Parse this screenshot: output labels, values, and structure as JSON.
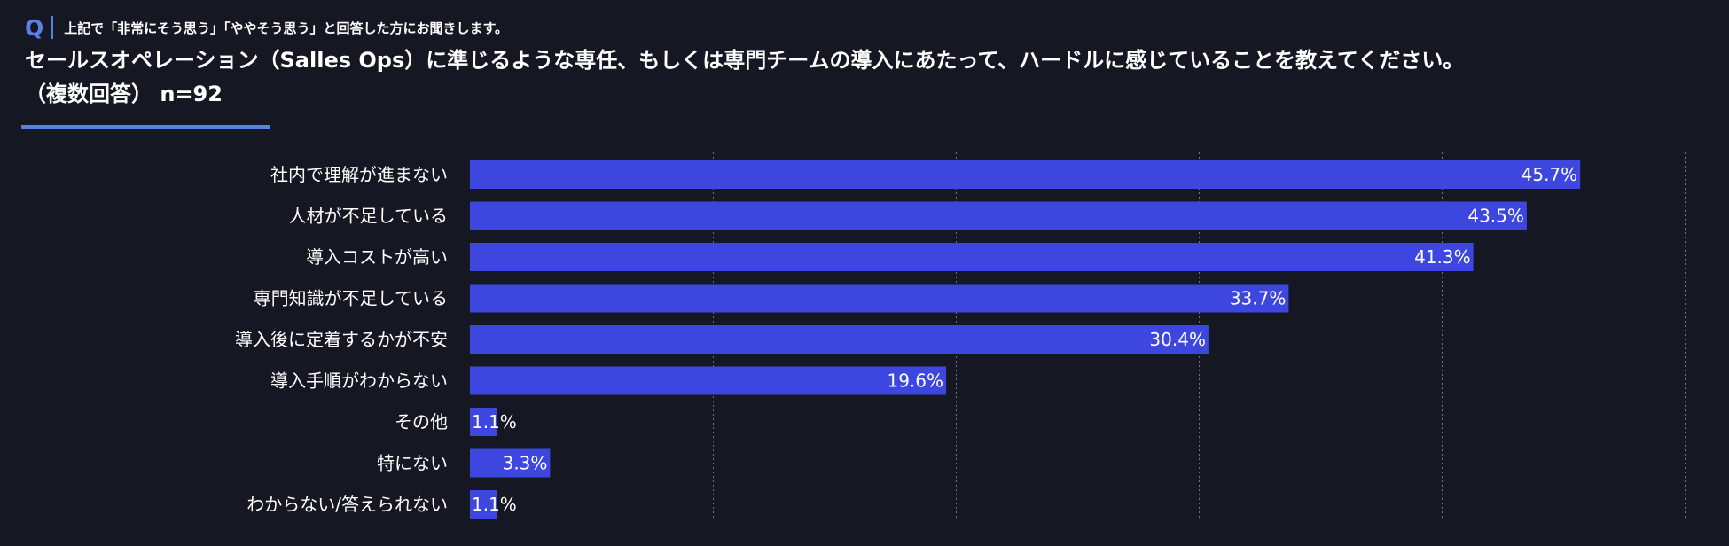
{
  "header": {
    "q_mark": "Q",
    "prequestion": "上記で「非常にそう思う」「ややそう思う」と回答した方にお聞きします。",
    "question": "セールスオペレーション（Salles Ops）に準じるような専任、もしくは専門チームの導入にあたって、ハードルに感じていることを教えてください。",
    "note": "（複数回答） n=92"
  },
  "colors": {
    "background": "#151823",
    "bar": "#3d47e0",
    "accent": "#5a7fe6",
    "grid": "#6c7080",
    "text": "#ffffff"
  },
  "chart_data": {
    "type": "bar",
    "orientation": "horizontal",
    "categories": [
      "社内で理解が進まない",
      "人材が不足している",
      "導入コストが高い",
      "専門知識が不足している",
      "導入後に定着するかが不安",
      "導入手順がわからない",
      "その他",
      "特にない",
      "わからない/答えられない"
    ],
    "values": [
      45.7,
      43.5,
      41.3,
      33.7,
      30.4,
      19.6,
      1.1,
      3.3,
      1.1
    ],
    "data_labels": [
      "45.7%",
      "43.5%",
      "41.3%",
      "33.7%",
      "30.4%",
      "19.6%",
      "1.1%",
      "3.3%",
      "1.1%"
    ],
    "xlim": [
      0,
      50
    ],
    "grid": true
  }
}
